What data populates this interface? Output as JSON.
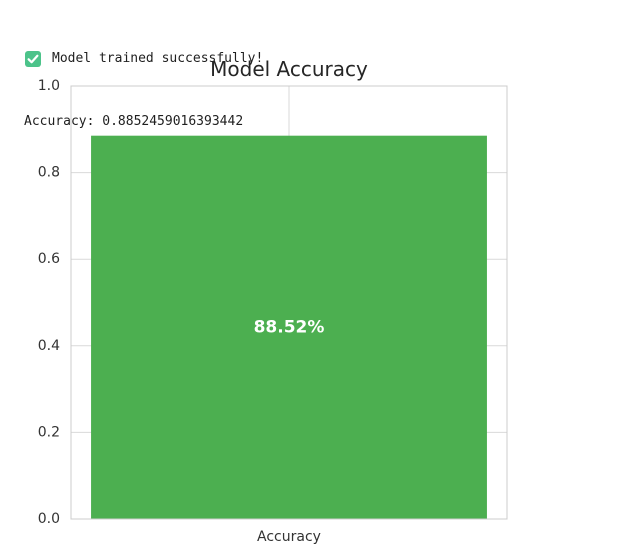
{
  "output": {
    "status_icon": "check-mark-icon",
    "status_icon_color": "#4cc38a",
    "status_text": "Model trained successfully!",
    "accuracy_line": "Accuracy: 0.8852459016393442"
  },
  "chart_data": {
    "type": "bar",
    "title": "Model Accuracy",
    "xlabel": "",
    "ylabel": "",
    "categories": [
      "Accuracy"
    ],
    "values": [
      0.8852459016393442
    ],
    "data_labels": [
      "88.52%"
    ],
    "ylim": [
      0,
      1.0
    ],
    "yticks": [
      "0.0",
      "0.2",
      "0.4",
      "0.6",
      "0.8",
      "1.0"
    ],
    "grid": true,
    "bar_color": "#4caf50",
    "label_color": "#ffffff"
  }
}
